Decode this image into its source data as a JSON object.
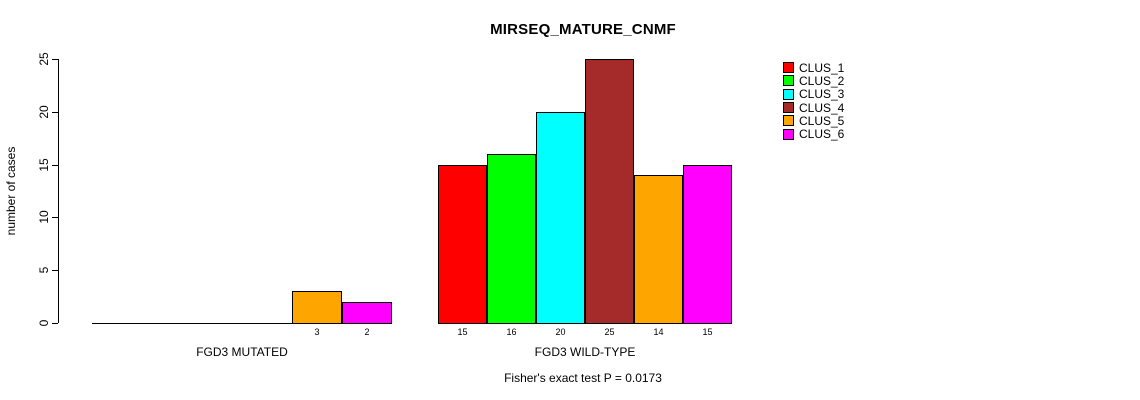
{
  "chart_data": {
    "type": "bar",
    "title": "MIRSEQ_MATURE_CNMF",
    "ylabel": "number of cases",
    "xlabel": "",
    "ylim": [
      0,
      25
    ],
    "yticks": [
      0,
      5,
      10,
      15,
      20,
      25
    ],
    "grid": false,
    "legend_position": "top-right-outside-bars",
    "bar_border_color": "#000000",
    "series": [
      {
        "name": "CLUS_1",
        "color": "#FF0000"
      },
      {
        "name": "CLUS_2",
        "color": "#00FF00"
      },
      {
        "name": "CLUS_3",
        "color": "#00FFFF"
      },
      {
        "name": "CLUS_4",
        "color": "#A52A2A"
      },
      {
        "name": "CLUS_5",
        "color": "#FFA500"
      },
      {
        "name": "CLUS_6",
        "color": "#FF00FF"
      }
    ],
    "groups": [
      {
        "label": "FGD3 MUTATED",
        "values": [
          0,
          0,
          0,
          0,
          3,
          2
        ]
      },
      {
        "label": "FGD3 WILD-TYPE",
        "values": [
          15,
          16,
          20,
          25,
          14,
          15
        ]
      }
    ],
    "footnote": "Fisher's exact test P = 0.0173"
  }
}
